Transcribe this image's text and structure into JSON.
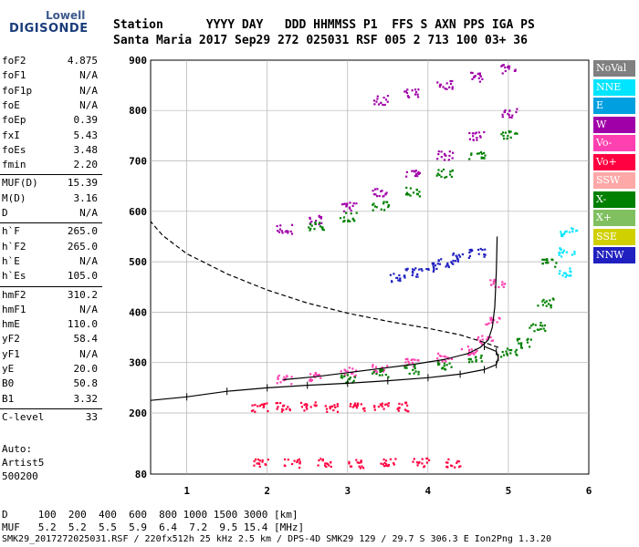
{
  "logo": {
    "line1": "Lowell",
    "line2": "DIGISONDE"
  },
  "header": {
    "line1": "Station      YYYY DAY   DDD HHMMSS P1  FFS S AXN PPS IGA PS",
    "line2": "Santa Maria 2017 Sep29 272 025031 RSF 005 2 713 100 03+ 36"
  },
  "params": [
    {
      "name": "foF2",
      "value": "4.875"
    },
    {
      "name": "foF1",
      "value": "N/A"
    },
    {
      "name": "foF1p",
      "value": "N/A"
    },
    {
      "name": "foE",
      "value": "N/A"
    },
    {
      "name": "foEp",
      "value": "0.39"
    },
    {
      "name": "fxI",
      "value": "5.43"
    },
    {
      "name": "foEs",
      "value": "3.48"
    },
    {
      "name": "fmin",
      "value": "2.20"
    },
    {
      "name": "MUF(D)",
      "value": "15.39"
    },
    {
      "name": "M(D)",
      "value": "3.16"
    },
    {
      "name": "D",
      "value": "N/A"
    },
    {
      "name": "h`F",
      "value": "265.0"
    },
    {
      "name": "h`F2",
      "value": "265.0"
    },
    {
      "name": "h`E",
      "value": "N/A"
    },
    {
      "name": "h`Es",
      "value": "105.0"
    },
    {
      "name": "hmF2",
      "value": "310.2"
    },
    {
      "name": "hmF1",
      "value": "N/A"
    },
    {
      "name": "hmE",
      "value": "110.0"
    },
    {
      "name": "yF2",
      "value": "58.4"
    },
    {
      "name": "yF1",
      "value": "N/A"
    },
    {
      "name": "yE",
      "value": "20.0"
    },
    {
      "name": "B0",
      "value": "50.8"
    },
    {
      "name": "B1",
      "value": "3.32"
    },
    {
      "name": "C-level",
      "value": "33"
    }
  ],
  "side": {
    "auto": "Auto:",
    "artist": "Artist5",
    "version": "500200"
  },
  "legend": [
    {
      "label": "NoVal",
      "color": "#808080"
    },
    {
      "label": "NNE",
      "color": "#00e5ff"
    },
    {
      "label": "E",
      "color": "#00a0e0"
    },
    {
      "label": "W",
      "color": "#a000a8"
    },
    {
      "label": "Vo-",
      "color": "#ff40b0"
    },
    {
      "label": "Vo+",
      "color": "#ff0040"
    },
    {
      "label": "SSW",
      "color": "#ffa8a8"
    },
    {
      "label": "X-",
      "color": "#008000"
    },
    {
      "label": "X+",
      "color": "#80c060"
    },
    {
      "label": "SSE",
      "color": "#d0d000"
    },
    {
      "label": "NNW",
      "color": "#2020c0"
    }
  ],
  "footer": {
    "d_row": "D     100  200  400  600  800 1000 1500 3000 [km]",
    "muf_row": "MUF   5.2  5.2  5.5  5.9  6.4  7.2  9.5 15.4 [MHz]",
    "file_row": "SMK29_2017272025031.RSF / 220fx512h 25 kHz 2.5 km / DPS-4D SMK29 129 / 29.7 S 306.3 E Ion2Png 1.3.20"
  },
  "chart_data": {
    "type": "scatter",
    "title": "",
    "xlabel": "",
    "ylabel": "",
    "xlim": [
      0.55,
      6.0
    ],
    "ylim": [
      80,
      900
    ],
    "x_ticks": [
      1,
      2,
      3,
      4,
      5,
      6
    ],
    "y_ticks": [
      80,
      200,
      300,
      400,
      500,
      600,
      700,
      800,
      900
    ],
    "grid": true,
    "legend_placement": "right",
    "traces": [
      {
        "name": "virtual height O-trace",
        "color": "#000000",
        "style": "solid",
        "x": [
          2.2,
          2.6,
          3.0,
          3.4,
          3.8,
          4.2,
          4.5,
          4.65,
          4.75,
          4.8,
          4.83,
          4.85,
          4.86
        ],
        "y": [
          266,
          272,
          280,
          288,
          296,
          306,
          318,
          330,
          345,
          370,
          410,
          480,
          550
        ]
      },
      {
        "name": "true height profile",
        "color": "#000000",
        "style": "solid-ticked",
        "x": [
          0.55,
          1.0,
          1.5,
          2.0,
          2.5,
          3.0,
          3.5,
          4.0,
          4.4,
          4.7,
          4.85,
          4.875,
          4.85,
          4.7
        ],
        "y": [
          225,
          232,
          243,
          250,
          255,
          259,
          264,
          270,
          277,
          286,
          296,
          310,
          322,
          332
        ]
      },
      {
        "name": "model topside",
        "color": "#000000",
        "style": "dashed",
        "x": [
          4.875,
          4.7,
          4.4,
          4.0,
          3.5,
          3.0,
          2.5,
          2.0,
          1.5,
          1.0,
          0.7,
          0.55
        ],
        "y": [
          330,
          340,
          355,
          368,
          382,
          398,
          418,
          444,
          476,
          516,
          552,
          580
        ]
      }
    ],
    "echo_series": [
      {
        "legend": "Vo-",
        "x": [
          2.2,
          2.6,
          3.0,
          3.4,
          3.8,
          4.2,
          4.5,
          4.7,
          4.8,
          4.85
        ],
        "y": [
          268,
          274,
          283,
          291,
          300,
          312,
          326,
          346,
          382,
          460
        ]
      },
      {
        "legend": "X-",
        "x": [
          3.0,
          3.4,
          3.8,
          4.2,
          4.6,
          5.0,
          5.2,
          5.35,
          5.45,
          5.5
        ],
        "y": [
          270,
          280,
          288,
          296,
          308,
          322,
          340,
          372,
          420,
          500
        ]
      },
      {
        "legend": "W",
        "x": [
          2.2,
          2.6,
          3.0,
          3.4,
          3.8,
          4.2,
          4.6,
          5.0
        ],
        "y": [
          566,
          584,
          610,
          640,
          676,
          712,
          752,
          796
        ]
      },
      {
        "legend": "X-",
        "x": [
          2.6,
          3.0,
          3.4,
          3.8,
          4.2,
          4.6,
          5.0
        ],
        "y": [
          572,
          590,
          612,
          640,
          676,
          712,
          752
        ]
      },
      {
        "legend": "NNW",
        "x": [
          3.6,
          3.8,
          4.0,
          4.2,
          4.4,
          4.6
        ],
        "y": [
          470,
          480,
          490,
          500,
          510,
          520
        ]
      },
      {
        "legend": "Vo+",
        "x": [
          1.9,
          2.2,
          2.5,
          2.8,
          3.1,
          3.4,
          3.7
        ],
        "y": [
          212,
          213,
          214,
          213,
          214,
          215,
          214
        ]
      },
      {
        "legend": "Vo+",
        "x": [
          1.9,
          2.3,
          2.7,
          3.1,
          3.5,
          3.9,
          4.3
        ],
        "y": [
          102,
          103,
          103,
          102,
          103,
          104,
          103
        ]
      },
      {
        "legend": "W",
        "x": [
          3.4,
          3.8,
          4.2,
          4.6,
          5.0
        ],
        "y": [
          822,
          836,
          852,
          868,
          884
        ]
      },
      {
        "legend": "NNE",
        "x": [
          5.7,
          5.72,
          5.74
        ],
        "y": [
          480,
          520,
          560
        ]
      }
    ]
  }
}
